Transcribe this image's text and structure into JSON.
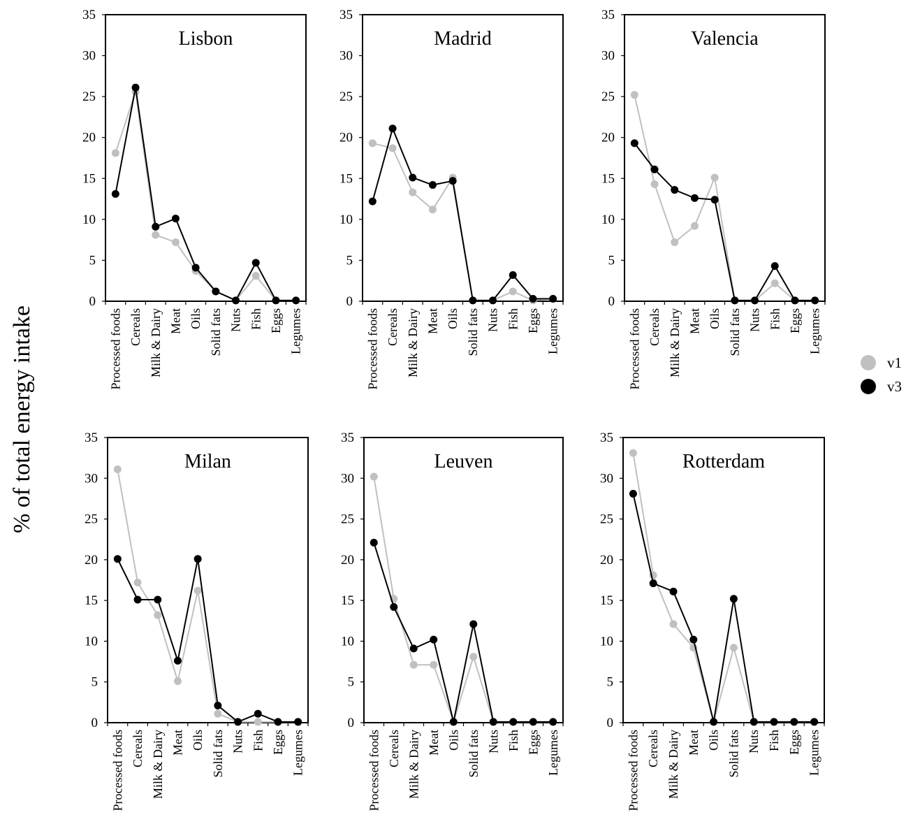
{
  "figure": {
    "ylabel": "% of total energy intake",
    "legend": [
      {
        "label": "v1",
        "color": "#c0c0c0"
      },
      {
        "label": "v3",
        "color": "#000000"
      }
    ]
  },
  "chart_data": [
    {
      "type": "line",
      "title": "Lisbon",
      "categories": [
        "Processed foods",
        "Cereals",
        "Milk & Dairy",
        "Meat",
        "Oils",
        "Solid fats",
        "Nuts",
        "Fish",
        "Eggs",
        "Legumes"
      ],
      "ylim": [
        0,
        35
      ],
      "yticks": [
        0,
        5,
        10,
        15,
        20,
        25,
        30,
        35
      ],
      "series": [
        {
          "name": "v1",
          "color": "#c0c0c0",
          "values": [
            18.1,
            25.6,
            8.1,
            7.2,
            3.7,
            1.2,
            0.1,
            3.1,
            0.1,
            0.1
          ]
        },
        {
          "name": "v3",
          "color": "#000000",
          "values": [
            13.1,
            26.1,
            9.1,
            10.1,
            4.1,
            1.2,
            0.1,
            4.7,
            0.1,
            0.1
          ]
        }
      ]
    },
    {
      "type": "line",
      "title": "Madrid",
      "categories": [
        "Processed foods",
        "Cereals",
        "Milk & Dairy",
        "Meat",
        "Oils",
        "Solid fats",
        "Nuts",
        "Fish",
        "Eggs",
        "Legumes"
      ],
      "ylim": [
        0,
        35
      ],
      "yticks": [
        0,
        5,
        10,
        15,
        20,
        25,
        30,
        35
      ],
      "series": [
        {
          "name": "v1",
          "color": "#c0c0c0",
          "values": [
            19.3,
            18.7,
            13.3,
            11.2,
            15.1,
            0.1,
            0.1,
            1.2,
            0.1,
            0.3
          ]
        },
        {
          "name": "v3",
          "color": "#000000",
          "values": [
            12.2,
            21.1,
            15.1,
            14.2,
            14.7,
            0.1,
            0.1,
            3.2,
            0.3,
            0.3
          ]
        }
      ]
    },
    {
      "type": "line",
      "title": "Valencia",
      "categories": [
        "Processed foods",
        "Cereals",
        "Milk & Dairy",
        "Meat",
        "Oils",
        "Solid fats",
        "Nuts",
        "Fish",
        "Eggs",
        "Legumes"
      ],
      "ylim": [
        0,
        35
      ],
      "yticks": [
        0,
        5,
        10,
        15,
        20,
        25,
        30,
        35
      ],
      "series": [
        {
          "name": "v1",
          "color": "#c0c0c0",
          "values": [
            25.2,
            14.3,
            7.2,
            9.2,
            15.1,
            0.1,
            0.1,
            2.2,
            0.1,
            0.1
          ]
        },
        {
          "name": "v3",
          "color": "#000000",
          "values": [
            19.3,
            16.1,
            13.6,
            12.6,
            12.4,
            0.1,
            0.1,
            4.3,
            0.1,
            0.1
          ]
        }
      ]
    },
    {
      "type": "line",
      "title": "Milan",
      "categories": [
        "Processed foods",
        "Cereals",
        "Milk & Dairy",
        "Meat",
        "Oils",
        "Solid fats",
        "Nuts",
        "Fish",
        "Eggs",
        "Legumes"
      ],
      "ylim": [
        0,
        35
      ],
      "yticks": [
        0,
        5,
        10,
        15,
        20,
        25,
        30,
        35
      ],
      "series": [
        {
          "name": "v1",
          "color": "#c0c0c0",
          "values": [
            31.1,
            17.2,
            13.2,
            5.1,
            16.2,
            1.1,
            0.1,
            0.1,
            0.1,
            0.1
          ]
        },
        {
          "name": "v3",
          "color": "#000000",
          "values": [
            20.1,
            15.1,
            15.1,
            7.6,
            20.1,
            2.1,
            0.1,
            1.1,
            0.1,
            0.1
          ]
        }
      ]
    },
    {
      "type": "line",
      "title": "Leuven",
      "categories": [
        "Processed foods",
        "Cereals",
        "Milk & Dairy",
        "Meat",
        "Oils",
        "Solid fats",
        "Nuts",
        "Fish",
        "Eggs",
        "Legumes"
      ],
      "ylim": [
        0,
        35
      ],
      "yticks": [
        0,
        5,
        10,
        15,
        20,
        25,
        30,
        35
      ],
      "series": [
        {
          "name": "v1",
          "color": "#c0c0c0",
          "values": [
            30.2,
            15.2,
            7.1,
            7.1,
            0.1,
            8.1,
            0.1,
            0.1,
            0.1,
            0.1
          ]
        },
        {
          "name": "v3",
          "color": "#000000",
          "values": [
            22.1,
            14.2,
            9.1,
            10.2,
            0.1,
            12.1,
            0.1,
            0.1,
            0.1,
            0.1
          ]
        }
      ]
    },
    {
      "type": "line",
      "title": "Rotterdam",
      "categories": [
        "Processed foods",
        "Cereals",
        "Milk & Dairy",
        "Meat",
        "Oils",
        "Solid fats",
        "Nuts",
        "Fish",
        "Eggs",
        "Legumes"
      ],
      "ylim": [
        0,
        35
      ],
      "yticks": [
        0,
        5,
        10,
        15,
        20,
        25,
        30,
        35
      ],
      "series": [
        {
          "name": "v1",
          "color": "#c0c0c0",
          "values": [
            33.1,
            18.1,
            12.1,
            9.2,
            0.1,
            9.2,
            0.1,
            0.1,
            0.1,
            0.1
          ]
        },
        {
          "name": "v3",
          "color": "#000000",
          "values": [
            28.1,
            17.1,
            16.1,
            10.2,
            0.1,
            15.2,
            0.1,
            0.1,
            0.1,
            0.1
          ]
        }
      ]
    }
  ]
}
